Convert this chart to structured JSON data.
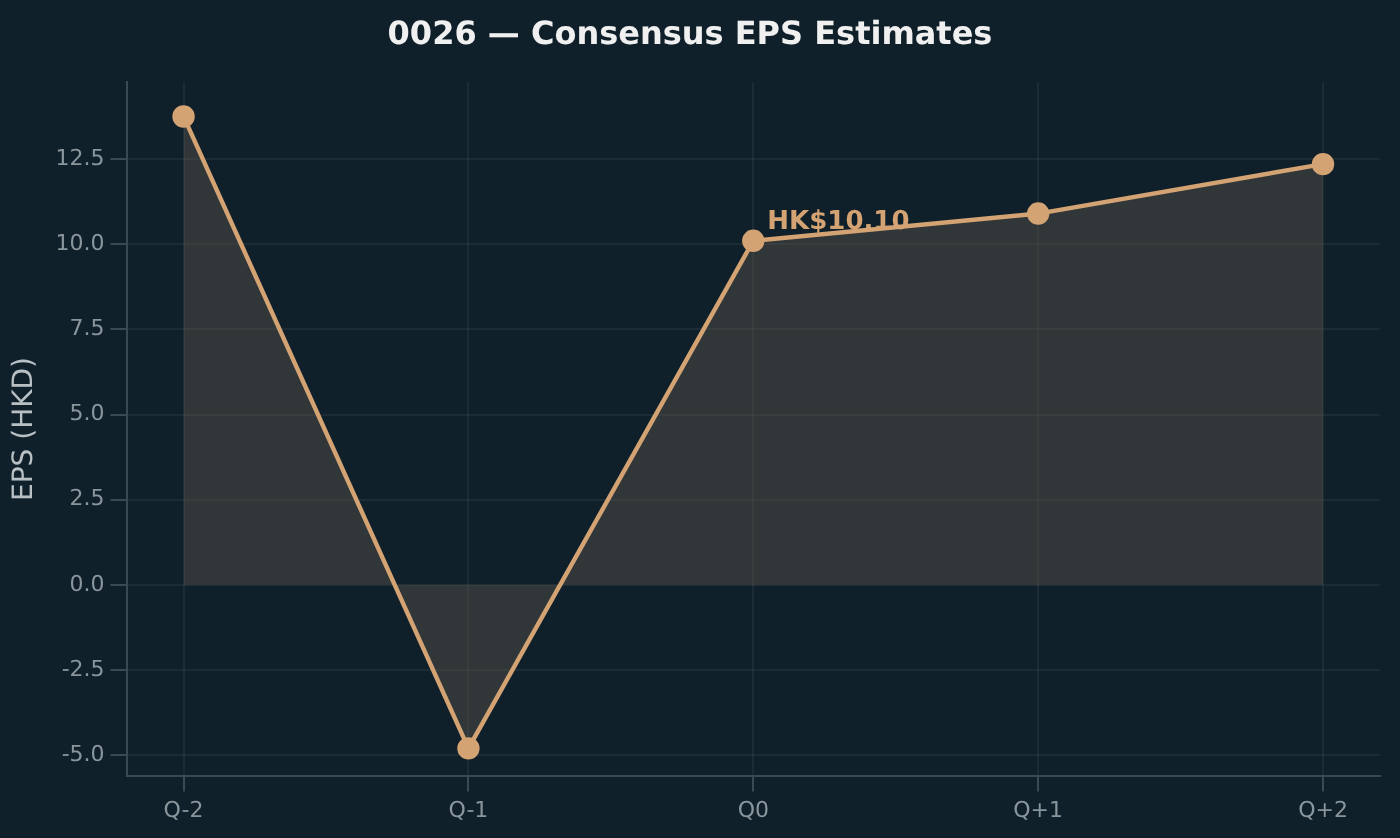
{
  "chart_data": {
    "type": "area",
    "title": "0026 — Consensus EPS Estimates",
    "ylabel": "EPS (HKD)",
    "categories": [
      "Q-2",
      "Q-1",
      "Q0",
      "Q+1",
      "Q+2"
    ],
    "series": [
      {
        "color": "#d4a373",
        "values": [
          13.75,
          -4.8,
          10.1,
          10.9,
          12.35
        ]
      }
    ],
    "ylim": [
      -5.6,
      14.75
    ],
    "yticks": [
      {
        "value": -5,
        "label": "-5.0"
      },
      -2.5,
      {
        "value": 0,
        "label": "0.0"
      },
      2.5,
      {
        "value": 5,
        "label": "5.0"
      },
      7.5,
      {
        "value": 10,
        "label": "10.0"
      },
      12.5
    ],
    "grid": true,
    "marker": "circle",
    "line_style": "solid",
    "legend": false,
    "annotations": [
      {
        "text": "HK$10.10",
        "x": "Q0",
        "y": 10.1
      }
    ]
  }
}
